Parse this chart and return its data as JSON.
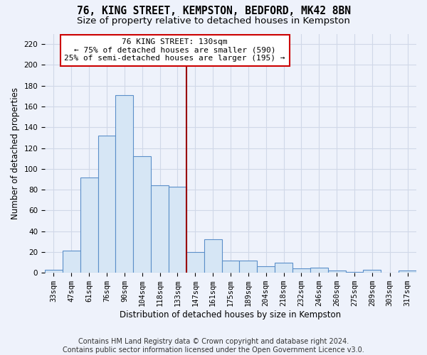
{
  "title": "76, KING STREET, KEMPSTON, BEDFORD, MK42 8BN",
  "subtitle": "Size of property relative to detached houses in Kempston",
  "xlabel": "Distribution of detached houses by size in Kempston",
  "ylabel": "Number of detached properties",
  "categories": [
    "33sqm",
    "47sqm",
    "61sqm",
    "76sqm",
    "90sqm",
    "104sqm",
    "118sqm",
    "133sqm",
    "147sqm",
    "161sqm",
    "175sqm",
    "189sqm",
    "204sqm",
    "218sqm",
    "232sqm",
    "246sqm",
    "260sqm",
    "275sqm",
    "289sqm",
    "303sqm",
    "317sqm"
  ],
  "values": [
    3,
    21,
    92,
    132,
    171,
    112,
    84,
    83,
    20,
    32,
    12,
    12,
    6,
    10,
    4,
    5,
    2,
    1,
    3,
    0,
    2
  ],
  "bar_color": "#d6e6f5",
  "bar_edge_color": "#5b8fc9",
  "background_color": "#eef2fb",
  "grid_color": "#d0d8e8",
  "vline_color": "#990000",
  "annotation_text": "76 KING STREET: 130sqm\n← 75% of detached houses are smaller (590)\n25% of semi-detached houses are larger (195) →",
  "annotation_box_color": "#ffffff",
  "annotation_box_edge": "#cc0000",
  "ylim": [
    0,
    230
  ],
  "yticks": [
    0,
    20,
    40,
    60,
    80,
    100,
    120,
    140,
    160,
    180,
    200,
    220
  ],
  "footer": "Contains HM Land Registry data © Crown copyright and database right 2024.\nContains public sector information licensed under the Open Government Licence v3.0.",
  "title_fontsize": 10.5,
  "subtitle_fontsize": 9.5,
  "xlabel_fontsize": 8.5,
  "ylabel_fontsize": 8.5,
  "tick_fontsize": 7.5,
  "annotation_fontsize": 8,
  "footer_fontsize": 7
}
